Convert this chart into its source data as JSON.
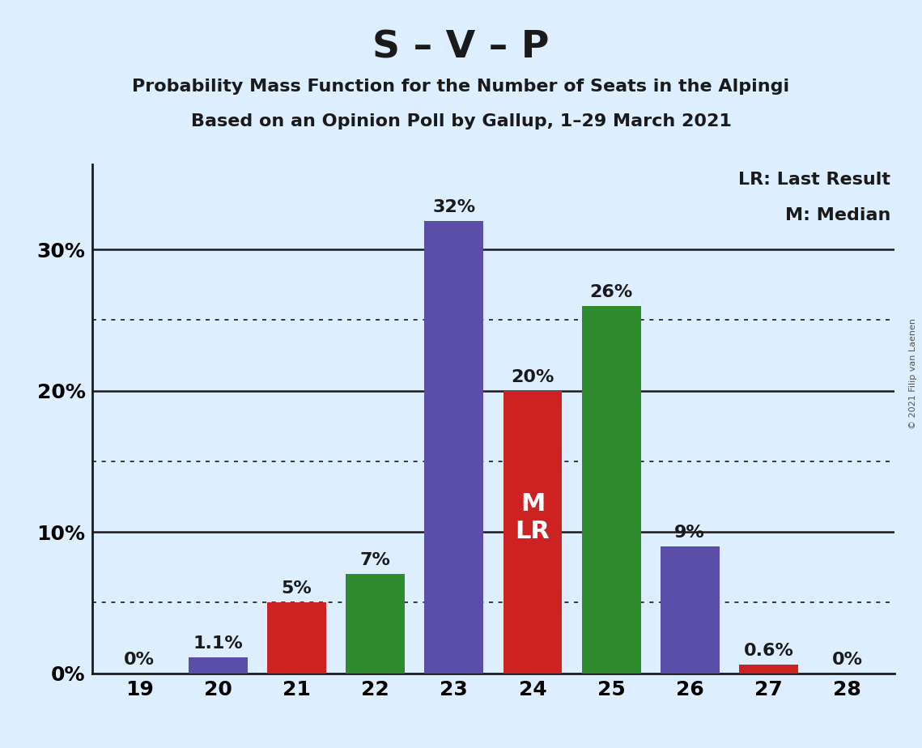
{
  "title": "S – V – P",
  "subtitle1": "Probability Mass Function for the Number of Seats in the Alpingi",
  "subtitle2": "Based on an Opinion Poll by Gallup, 1–29 March 2021",
  "copyright": "© 2021 Filip van Laenen",
  "seats": [
    19,
    20,
    21,
    22,
    23,
    24,
    25,
    26,
    27,
    28
  ],
  "values": [
    0.0,
    1.1,
    5.0,
    7.0,
    32.0,
    20.0,
    26.0,
    9.0,
    0.6,
    0.0
  ],
  "labels": [
    "0%",
    "1.1%",
    "5%",
    "7%",
    "32%",
    "20%",
    "26%",
    "9%",
    "0.6%",
    "0%"
  ],
  "colors": [
    "#5b4ea8",
    "#5b4ea8",
    "#cc2222",
    "#2e8b2e",
    "#5b4ea8",
    "#cc2222",
    "#2e8b2e",
    "#5b4ea8",
    "#cc2222",
    "#5b4ea8"
  ],
  "background_color": "#ddeeff",
  "median_seat": 24,
  "legend_lr": "LR: Last Result",
  "legend_m": "M: Median",
  "ylim": [
    0,
    36
  ],
  "dotted_lines": [
    5,
    15,
    25
  ],
  "solid_lines": [
    10,
    20,
    30
  ],
  "solid_line_color": "#1a1a1a",
  "dotted_line_color": "#1a1a1a",
  "bar_width": 0.75,
  "label_fontsize": 16,
  "tick_fontsize": 18,
  "title_fontsize": 34,
  "subtitle_fontsize": 16,
  "legend_fontsize": 16,
  "ml_fontsize": 22
}
